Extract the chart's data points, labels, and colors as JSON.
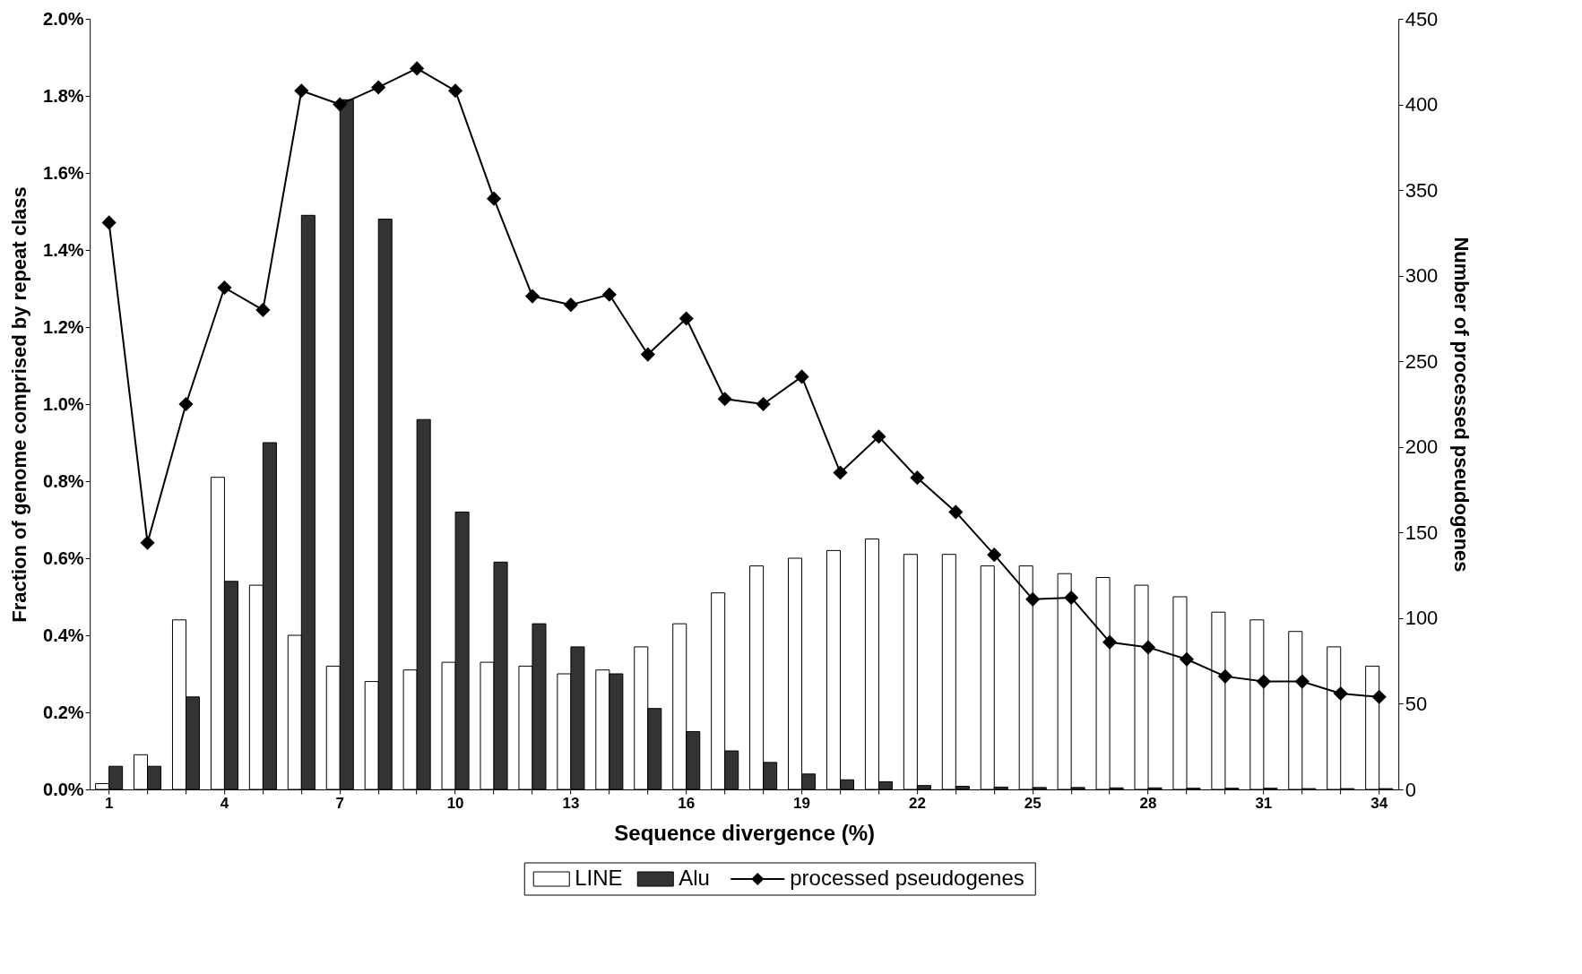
{
  "chart_data": {
    "type": "bar",
    "xlabel": "Sequence divergence (%)",
    "ylabel": "Fraction of genome comprised by repeat class",
    "y2label": "Number of processed pseudogenes",
    "categories": [
      "1",
      null,
      null,
      "4",
      null,
      null,
      "7",
      null,
      null,
      "10",
      null,
      null,
      "13",
      null,
      null,
      "16",
      null,
      null,
      "19",
      null,
      null,
      "22",
      null,
      null,
      "25",
      null,
      null,
      "28",
      null,
      null,
      "31",
      null,
      null,
      "34"
    ],
    "series": [
      {
        "name": "LINE",
        "color": "#ffffff",
        "values": [
          0.015,
          0.09,
          0.44,
          0.81,
          0.53,
          0.4,
          0.32,
          0.28,
          0.31,
          0.33,
          0.33,
          0.32,
          0.3,
          0.31,
          0.37,
          0.43,
          0.51,
          0.58,
          0.6,
          0.62,
          0.65,
          0.61,
          0.61,
          0.58,
          0.58,
          0.56,
          0.55,
          0.53,
          0.5,
          0.46,
          0.44,
          0.41,
          0.37,
          0.32
        ]
      },
      {
        "name": "Alu",
        "color": "#333333",
        "values": [
          0.06,
          0.06,
          0.24,
          0.54,
          0.9,
          1.49,
          1.79,
          1.48,
          0.96,
          0.72,
          0.59,
          0.43,
          0.37,
          0.3,
          0.21,
          0.15,
          0.1,
          0.07,
          0.04,
          0.025,
          0.02,
          0.01,
          0.008,
          0.006,
          0.005,
          0.005,
          0.004,
          0.004,
          0.003,
          0.003,
          0.003,
          0.002,
          0.002,
          0.002
        ]
      },
      {
        "name": "processed pseudogenes",
        "type": "line",
        "axis": "y2",
        "color": "#000000",
        "values": [
          331,
          144,
          225,
          293,
          280,
          408,
          400,
          410,
          421,
          408,
          345,
          288,
          283,
          289,
          254,
          275,
          228,
          225,
          241,
          185,
          206,
          182,
          162,
          137,
          111,
          112,
          86,
          83,
          76,
          66,
          63,
          63,
          56,
          54
        ]
      }
    ],
    "ylim": [
      0,
      2.0
    ],
    "yticks": [
      {
        "value": 0,
        "label": "0.0%"
      },
      {
        "value": 0.2,
        "label": "0.2%"
      },
      {
        "value": 0.4,
        "label": "0.4%"
      },
      {
        "value": 0.6,
        "label": "0.6%"
      },
      {
        "value": 0.8,
        "label": "0.8%"
      },
      {
        "value": 1.0,
        "label": "1.0%"
      },
      {
        "value": 1.2,
        "label": "1.2%"
      },
      {
        "value": 1.4,
        "label": "1.4%"
      },
      {
        "value": 1.6,
        "label": "1.6%"
      },
      {
        "value": 1.8,
        "label": "1.8%"
      },
      {
        "value": 2.0,
        "label": "2.0%"
      }
    ],
    "y2lim": [
      0,
      450
    ],
    "y2ticks": [
      0,
      50,
      100,
      150,
      200,
      250,
      300,
      350,
      400,
      450
    ],
    "marker": "diamond",
    "line_style": "solid",
    "grid": false,
    "legend": "bottom"
  }
}
